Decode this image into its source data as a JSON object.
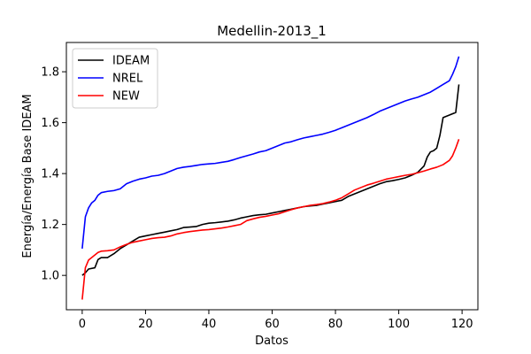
{
  "chart_data": {
    "type": "line",
    "title": "Medellin-2013_1",
    "xlabel": "Datos",
    "ylabel": "Energía/Energía Base IDEAM",
    "xlim": [
      -5,
      125
    ],
    "ylim": [
      0.865,
      1.915
    ],
    "xticks": [
      0,
      20,
      40,
      60,
      80,
      100,
      120
    ],
    "yticks": [
      1.0,
      1.2,
      1.4,
      1.6,
      1.8
    ],
    "ytick_labels": [
      "1.0",
      "1.2",
      "1.4",
      "1.6",
      "1.8"
    ],
    "legend_position": "upper-left",
    "series": [
      {
        "name": "IDEAM",
        "color": "#000000",
        "points": [
          [
            0,
            1.0
          ],
          [
            1,
            1.01
          ],
          [
            2,
            1.025
          ],
          [
            4,
            1.03
          ],
          [
            5,
            1.062
          ],
          [
            6,
            1.07
          ],
          [
            8,
            1.07
          ],
          [
            10,
            1.085
          ],
          [
            12,
            1.105
          ],
          [
            14,
            1.12
          ],
          [
            16,
            1.135
          ],
          [
            18,
            1.15
          ],
          [
            20,
            1.155
          ],
          [
            22,
            1.16
          ],
          [
            24,
            1.165
          ],
          [
            26,
            1.17
          ],
          [
            28,
            1.175
          ],
          [
            30,
            1.18
          ],
          [
            32,
            1.188
          ],
          [
            34,
            1.19
          ],
          [
            36,
            1.192
          ],
          [
            38,
            1.2
          ],
          [
            40,
            1.205
          ],
          [
            42,
            1.207
          ],
          [
            44,
            1.21
          ],
          [
            46,
            1.213
          ],
          [
            48,
            1.218
          ],
          [
            50,
            1.225
          ],
          [
            52,
            1.23
          ],
          [
            54,
            1.235
          ],
          [
            56,
            1.238
          ],
          [
            58,
            1.24
          ],
          [
            60,
            1.245
          ],
          [
            62,
            1.25
          ],
          [
            64,
            1.255
          ],
          [
            66,
            1.26
          ],
          [
            68,
            1.265
          ],
          [
            70,
            1.27
          ],
          [
            72,
            1.273
          ],
          [
            74,
            1.275
          ],
          [
            76,
            1.28
          ],
          [
            78,
            1.285
          ],
          [
            80,
            1.29
          ],
          [
            82,
            1.295
          ],
          [
            84,
            1.31
          ],
          [
            86,
            1.32
          ],
          [
            88,
            1.33
          ],
          [
            90,
            1.34
          ],
          [
            92,
            1.35
          ],
          [
            94,
            1.36
          ],
          [
            96,
            1.368
          ],
          [
            98,
            1.372
          ],
          [
            100,
            1.377
          ],
          [
            102,
            1.383
          ],
          [
            104,
            1.393
          ],
          [
            106,
            1.405
          ],
          [
            108,
            1.43
          ],
          [
            109,
            1.465
          ],
          [
            110,
            1.485
          ],
          [
            111,
            1.49
          ],
          [
            112,
            1.5
          ],
          [
            113,
            1.55
          ],
          [
            114,
            1.62
          ],
          [
            116,
            1.63
          ],
          [
            118,
            1.64
          ],
          [
            119,
            1.75
          ]
        ]
      },
      {
        "name": "NREL",
        "color": "#0000ff",
        "points": [
          [
            0,
            1.105
          ],
          [
            1,
            1.23
          ],
          [
            2,
            1.265
          ],
          [
            3,
            1.285
          ],
          [
            4,
            1.295
          ],
          [
            5,
            1.315
          ],
          [
            6,
            1.325
          ],
          [
            8,
            1.33
          ],
          [
            10,
            1.333
          ],
          [
            12,
            1.34
          ],
          [
            14,
            1.36
          ],
          [
            16,
            1.37
          ],
          [
            18,
            1.378
          ],
          [
            20,
            1.383
          ],
          [
            22,
            1.39
          ],
          [
            24,
            1.393
          ],
          [
            26,
            1.4
          ],
          [
            28,
            1.41
          ],
          [
            30,
            1.42
          ],
          [
            32,
            1.425
          ],
          [
            34,
            1.428
          ],
          [
            36,
            1.432
          ],
          [
            38,
            1.436
          ],
          [
            40,
            1.438
          ],
          [
            42,
            1.44
          ],
          [
            44,
            1.444
          ],
          [
            46,
            1.448
          ],
          [
            48,
            1.455
          ],
          [
            50,
            1.463
          ],
          [
            52,
            1.47
          ],
          [
            54,
            1.477
          ],
          [
            56,
            1.485
          ],
          [
            58,
            1.49
          ],
          [
            60,
            1.5
          ],
          [
            62,
            1.51
          ],
          [
            64,
            1.52
          ],
          [
            66,
            1.525
          ],
          [
            68,
            1.533
          ],
          [
            70,
            1.54
          ],
          [
            72,
            1.545
          ],
          [
            74,
            1.55
          ],
          [
            76,
            1.555
          ],
          [
            78,
            1.562
          ],
          [
            80,
            1.57
          ],
          [
            82,
            1.58
          ],
          [
            84,
            1.59
          ],
          [
            86,
            1.6
          ],
          [
            88,
            1.61
          ],
          [
            90,
            1.62
          ],
          [
            92,
            1.632
          ],
          [
            94,
            1.645
          ],
          [
            96,
            1.655
          ],
          [
            98,
            1.665
          ],
          [
            100,
            1.675
          ],
          [
            102,
            1.685
          ],
          [
            104,
            1.693
          ],
          [
            106,
            1.7
          ],
          [
            108,
            1.71
          ],
          [
            110,
            1.72
          ],
          [
            112,
            1.735
          ],
          [
            114,
            1.75
          ],
          [
            116,
            1.765
          ],
          [
            117,
            1.79
          ],
          [
            118,
            1.82
          ],
          [
            119,
            1.86
          ]
        ]
      },
      {
        "name": "NEW",
        "color": "#ff0000",
        "points": [
          [
            0,
            0.905
          ],
          [
            1,
            1.03
          ],
          [
            2,
            1.06
          ],
          [
            3,
            1.07
          ],
          [
            4,
            1.08
          ],
          [
            5,
            1.09
          ],
          [
            6,
            1.095
          ],
          [
            8,
            1.097
          ],
          [
            10,
            1.1
          ],
          [
            12,
            1.112
          ],
          [
            14,
            1.122
          ],
          [
            16,
            1.13
          ],
          [
            18,
            1.135
          ],
          [
            20,
            1.14
          ],
          [
            22,
            1.145
          ],
          [
            24,
            1.148
          ],
          [
            26,
            1.15
          ],
          [
            28,
            1.155
          ],
          [
            30,
            1.163
          ],
          [
            32,
            1.168
          ],
          [
            34,
            1.172
          ],
          [
            36,
            1.175
          ],
          [
            38,
            1.178
          ],
          [
            40,
            1.18
          ],
          [
            42,
            1.183
          ],
          [
            44,
            1.186
          ],
          [
            46,
            1.19
          ],
          [
            48,
            1.195
          ],
          [
            50,
            1.2
          ],
          [
            52,
            1.215
          ],
          [
            54,
            1.222
          ],
          [
            56,
            1.228
          ],
          [
            58,
            1.232
          ],
          [
            60,
            1.237
          ],
          [
            62,
            1.242
          ],
          [
            64,
            1.25
          ],
          [
            66,
            1.258
          ],
          [
            68,
            1.265
          ],
          [
            70,
            1.27
          ],
          [
            72,
            1.275
          ],
          [
            74,
            1.278
          ],
          [
            76,
            1.282
          ],
          [
            78,
            1.288
          ],
          [
            80,
            1.295
          ],
          [
            82,
            1.305
          ],
          [
            84,
            1.32
          ],
          [
            86,
            1.335
          ],
          [
            88,
            1.345
          ],
          [
            90,
            1.355
          ],
          [
            92,
            1.362
          ],
          [
            94,
            1.37
          ],
          [
            96,
            1.378
          ],
          [
            98,
            1.383
          ],
          [
            100,
            1.388
          ],
          [
            102,
            1.393
          ],
          [
            104,
            1.397
          ],
          [
            106,
            1.403
          ],
          [
            108,
            1.41
          ],
          [
            110,
            1.418
          ],
          [
            112,
            1.425
          ],
          [
            114,
            1.435
          ],
          [
            116,
            1.452
          ],
          [
            117,
            1.47
          ],
          [
            118,
            1.5
          ],
          [
            119,
            1.535
          ]
        ]
      }
    ]
  }
}
